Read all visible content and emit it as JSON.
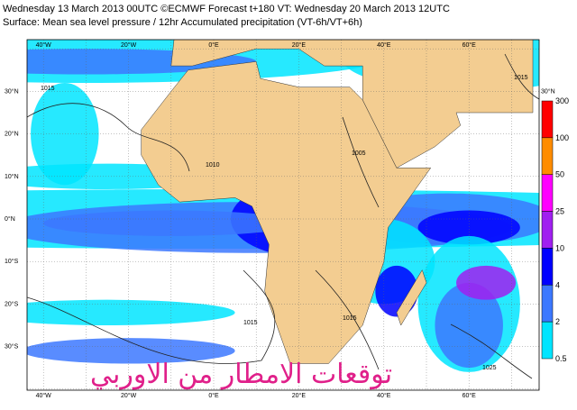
{
  "header": {
    "line1": "Wednesday 13 March 2013 00UTC ©ECMWF Forecast t+180 VT: Wednesday 20 March 2013 12UTC",
    "line2": "Surface: Mean sea level pressure / 12hr Accumulated precipitation (VT-6h/VT+6h)"
  },
  "map": {
    "longitude_labels": [
      "40°W",
      "20°W",
      "0°E",
      "20°E",
      "40°E",
      "60°E"
    ],
    "latitude_labels": [
      "30°N",
      "20°N",
      "10°N",
      "0°N",
      "10°S",
      "20°S",
      "30°S"
    ],
    "isobar_labels": [
      "1015",
      "1005",
      "1010",
      "1015",
      "1015",
      "1015",
      "1025"
    ]
  },
  "legend": {
    "labels": [
      "300",
      "100",
      "50",
      "25",
      "10",
      "4",
      "2",
      "0.5"
    ],
    "colors": [
      "#ff0000",
      "#ff8c00",
      "#ff00ff",
      "#a020f0",
      "#0000ff",
      "#3c78ff",
      "#00e5ff"
    ]
  },
  "watermark": "توقعات الامطار من الاوربي"
}
